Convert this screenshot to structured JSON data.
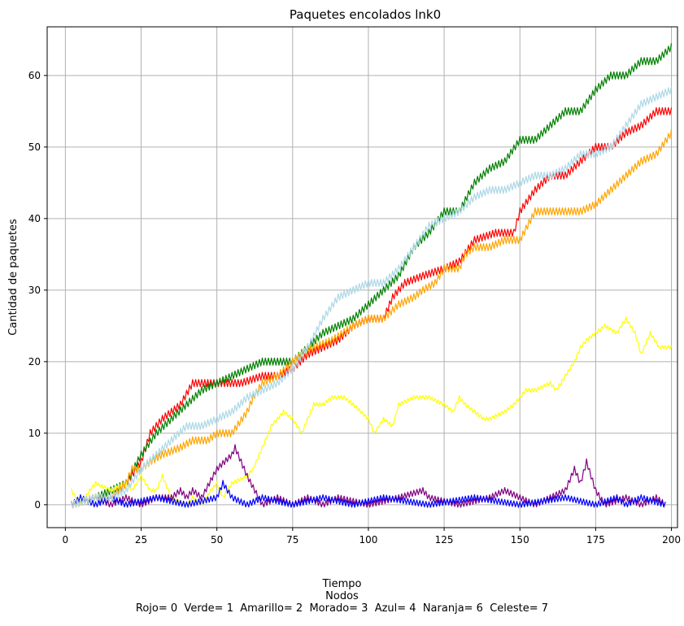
{
  "chart_data": {
    "type": "line",
    "title": "Paquetes encolados lnk0",
    "xlabel": "Tiempo",
    "caption_line1": "Nodos",
    "caption_line2": "Rojo= 0  Verde= 1  Amarillo= 2  Morado= 3  Azul= 4  Naranja= 6  Celeste= 7",
    "ylabel": "Cantidad de paquetes",
    "xlim": [
      -6,
      202
    ],
    "ylim": [
      -3.2,
      66.8
    ],
    "xticks": [
      0,
      25,
      50,
      75,
      100,
      125,
      150,
      175,
      200
    ],
    "yticks": [
      0,
      10,
      20,
      30,
      40,
      50,
      60
    ],
    "grid": true,
    "series": [
      {
        "color": "#ff0000",
        "jitter": 1,
        "points": [
          [
            2,
            0
          ],
          [
            10,
            1
          ],
          [
            15,
            1
          ],
          [
            20,
            3
          ],
          [
            25,
            6
          ],
          [
            28,
            10
          ],
          [
            32,
            12
          ],
          [
            38,
            14
          ],
          [
            42,
            17
          ],
          [
            50,
            17
          ],
          [
            58,
            17
          ],
          [
            65,
            18
          ],
          [
            70,
            18
          ],
          [
            75,
            19
          ],
          [
            80,
            21
          ],
          [
            85,
            22
          ],
          [
            90,
            23
          ],
          [
            95,
            25
          ],
          [
            100,
            26
          ],
          [
            105,
            26
          ],
          [
            108,
            29
          ],
          [
            112,
            31
          ],
          [
            118,
            32
          ],
          [
            125,
            33
          ],
          [
            130,
            34
          ],
          [
            135,
            37
          ],
          [
            142,
            38
          ],
          [
            148,
            38
          ],
          [
            150,
            41
          ],
          [
            155,
            44
          ],
          [
            160,
            46
          ],
          [
            165,
            46
          ],
          [
            170,
            48
          ],
          [
            175,
            50
          ],
          [
            180,
            50
          ],
          [
            185,
            52
          ],
          [
            190,
            53
          ],
          [
            195,
            55
          ],
          [
            200,
            55
          ]
        ]
      },
      {
        "color": "#008000",
        "jitter": 1,
        "points": [
          [
            2,
            0
          ],
          [
            10,
            1
          ],
          [
            15,
            2
          ],
          [
            20,
            3
          ],
          [
            25,
            7
          ],
          [
            30,
            10
          ],
          [
            35,
            12
          ],
          [
            40,
            14
          ],
          [
            45,
            16
          ],
          [
            50,
            17
          ],
          [
            55,
            18
          ],
          [
            60,
            19
          ],
          [
            65,
            20
          ],
          [
            70,
            20
          ],
          [
            75,
            20
          ],
          [
            80,
            22
          ],
          [
            85,
            24
          ],
          [
            90,
            25
          ],
          [
            95,
            26
          ],
          [
            100,
            28
          ],
          [
            105,
            30
          ],
          [
            110,
            32
          ],
          [
            115,
            36
          ],
          [
            120,
            38
          ],
          [
            125,
            41
          ],
          [
            130,
            41
          ],
          [
            135,
            45
          ],
          [
            140,
            47
          ],
          [
            145,
            48
          ],
          [
            150,
            51
          ],
          [
            155,
            51
          ],
          [
            160,
            53
          ],
          [
            165,
            55
          ],
          [
            170,
            55
          ],
          [
            175,
            58
          ],
          [
            180,
            60
          ],
          [
            185,
            60
          ],
          [
            190,
            62
          ],
          [
            195,
            62
          ],
          [
            200,
            64
          ]
        ]
      },
      {
        "color": "#ffff00",
        "jitter": 0.5,
        "points": [
          [
            2,
            2
          ],
          [
            5,
            0
          ],
          [
            8,
            2
          ],
          [
            10,
            3
          ],
          [
            15,
            2
          ],
          [
            20,
            3
          ],
          [
            22,
            2
          ],
          [
            25,
            4
          ],
          [
            28,
            2
          ],
          [
            30,
            2
          ],
          [
            32,
            4
          ],
          [
            35,
            1
          ],
          [
            40,
            0
          ],
          [
            42,
            1
          ],
          [
            45,
            0
          ],
          [
            48,
            2
          ],
          [
            50,
            3
          ],
          [
            52,
            1
          ],
          [
            55,
            3
          ],
          [
            60,
            4
          ],
          [
            62,
            5
          ],
          [
            65,
            8
          ],
          [
            68,
            11
          ],
          [
            70,
            12
          ],
          [
            72,
            13
          ],
          [
            75,
            12
          ],
          [
            78,
            10
          ],
          [
            80,
            12
          ],
          [
            82,
            14
          ],
          [
            85,
            14
          ],
          [
            88,
            15
          ],
          [
            92,
            15
          ],
          [
            95,
            14
          ],
          [
            100,
            12
          ],
          [
            102,
            10
          ],
          [
            105,
            12
          ],
          [
            108,
            11
          ],
          [
            110,
            14
          ],
          [
            115,
            15
          ],
          [
            120,
            15
          ],
          [
            125,
            14
          ],
          [
            128,
            13
          ],
          [
            130,
            15
          ],
          [
            132,
            14
          ],
          [
            135,
            13
          ],
          [
            138,
            12
          ],
          [
            140,
            12
          ],
          [
            145,
            13
          ],
          [
            148,
            14
          ],
          [
            150,
            15
          ],
          [
            152,
            16
          ],
          [
            155,
            16
          ],
          [
            160,
            17
          ],
          [
            162,
            16
          ],
          [
            165,
            18
          ],
          [
            168,
            20
          ],
          [
            170,
            22
          ],
          [
            172,
            23
          ],
          [
            175,
            24
          ],
          [
            178,
            25
          ],
          [
            182,
            24
          ],
          [
            185,
            26
          ],
          [
            188,
            24
          ],
          [
            190,
            21
          ],
          [
            193,
            24
          ],
          [
            196,
            22
          ],
          [
            200,
            22
          ]
        ]
      },
      {
        "color": "#800080",
        "jitter": 0.8,
        "points": [
          [
            2,
            0
          ],
          [
            10,
            1
          ],
          [
            15,
            0
          ],
          [
            20,
            1
          ],
          [
            25,
            0
          ],
          [
            30,
            1
          ],
          [
            35,
            1
          ],
          [
            38,
            2
          ],
          [
            40,
            1
          ],
          [
            42,
            2
          ],
          [
            45,
            1
          ],
          [
            50,
            5
          ],
          [
            55,
            7
          ],
          [
            56,
            8
          ],
          [
            60,
            4
          ],
          [
            65,
            0
          ],
          [
            70,
            1
          ],
          [
            75,
            0
          ],
          [
            80,
            1
          ],
          [
            85,
            0
          ],
          [
            90,
            1
          ],
          [
            100,
            0
          ],
          [
            110,
            1
          ],
          [
            118,
            2
          ],
          [
            120,
            1
          ],
          [
            130,
            0
          ],
          [
            140,
            1
          ],
          [
            145,
            2
          ],
          [
            150,
            1
          ],
          [
            155,
            0
          ],
          [
            165,
            2
          ],
          [
            168,
            5
          ],
          [
            170,
            3
          ],
          [
            172,
            6
          ],
          [
            175,
            2
          ],
          [
            178,
            0
          ],
          [
            185,
            1
          ],
          [
            190,
            0
          ],
          [
            195,
            1
          ],
          [
            198,
            0
          ]
        ]
      },
      {
        "color": "#0000ff",
        "jitter": 0.8,
        "points": [
          [
            2,
            0
          ],
          [
            5,
            1
          ],
          [
            10,
            0
          ],
          [
            15,
            1
          ],
          [
            20,
            0
          ],
          [
            30,
            1
          ],
          [
            40,
            0
          ],
          [
            50,
            1
          ],
          [
            52,
            3
          ],
          [
            55,
            1
          ],
          [
            60,
            0
          ],
          [
            65,
            1
          ],
          [
            75,
            0
          ],
          [
            85,
            1
          ],
          [
            95,
            0
          ],
          [
            105,
            1
          ],
          [
            120,
            0
          ],
          [
            135,
            1
          ],
          [
            150,
            0
          ],
          [
            165,
            1
          ],
          [
            175,
            0
          ],
          [
            182,
            1
          ],
          [
            185,
            0
          ],
          [
            190,
            1
          ],
          [
            198,
            0
          ]
        ]
      },
      {
        "color": "#ffa500",
        "jitter": 1,
        "points": [
          [
            2,
            0
          ],
          [
            10,
            1
          ],
          [
            15,
            1
          ],
          [
            20,
            3
          ],
          [
            22,
            5
          ],
          [
            25,
            5
          ],
          [
            28,
            6
          ],
          [
            32,
            7
          ],
          [
            38,
            8
          ],
          [
            42,
            9
          ],
          [
            47,
            9
          ],
          [
            50,
            10
          ],
          [
            55,
            10
          ],
          [
            60,
            13
          ],
          [
            62,
            15
          ],
          [
            65,
            17
          ],
          [
            70,
            18
          ],
          [
            75,
            20
          ],
          [
            78,
            21
          ],
          [
            82,
            22
          ],
          [
            88,
            23
          ],
          [
            95,
            25
          ],
          [
            100,
            26
          ],
          [
            105,
            26
          ],
          [
            110,
            28
          ],
          [
            115,
            29
          ],
          [
            118,
            30
          ],
          [
            122,
            31
          ],
          [
            125,
            33
          ],
          [
            130,
            33
          ],
          [
            132,
            35
          ],
          [
            135,
            36
          ],
          [
            140,
            36
          ],
          [
            145,
            37
          ],
          [
            150,
            37
          ],
          [
            155,
            41
          ],
          [
            160,
            41
          ],
          [
            165,
            41
          ],
          [
            170,
            41
          ],
          [
            175,
            42
          ],
          [
            180,
            44
          ],
          [
            185,
            46
          ],
          [
            190,
            48
          ],
          [
            195,
            49
          ],
          [
            200,
            52
          ]
        ]
      },
      {
        "color": "#add8e6",
        "jitter": 1,
        "points": [
          [
            2,
            0
          ],
          [
            10,
            1
          ],
          [
            15,
            1
          ],
          [
            20,
            2
          ],
          [
            25,
            5
          ],
          [
            30,
            7
          ],
          [
            35,
            9
          ],
          [
            40,
            11
          ],
          [
            45,
            11
          ],
          [
            50,
            12
          ],
          [
            55,
            13
          ],
          [
            60,
            15
          ],
          [
            65,
            16
          ],
          [
            70,
            17
          ],
          [
            75,
            19
          ],
          [
            80,
            22
          ],
          [
            85,
            26
          ],
          [
            90,
            29
          ],
          [
            95,
            30
          ],
          [
            100,
            31
          ],
          [
            105,
            31
          ],
          [
            110,
            33
          ],
          [
            115,
            36
          ],
          [
            120,
            39
          ],
          [
            125,
            40
          ],
          [
            130,
            41
          ],
          [
            135,
            43
          ],
          [
            140,
            44
          ],
          [
            145,
            44
          ],
          [
            150,
            45
          ],
          [
            155,
            46
          ],
          [
            160,
            46
          ],
          [
            165,
            47
          ],
          [
            170,
            49
          ],
          [
            175,
            49
          ],
          [
            180,
            50
          ],
          [
            185,
            53
          ],
          [
            190,
            56
          ],
          [
            195,
            57
          ],
          [
            200,
            58
          ]
        ]
      }
    ]
  }
}
